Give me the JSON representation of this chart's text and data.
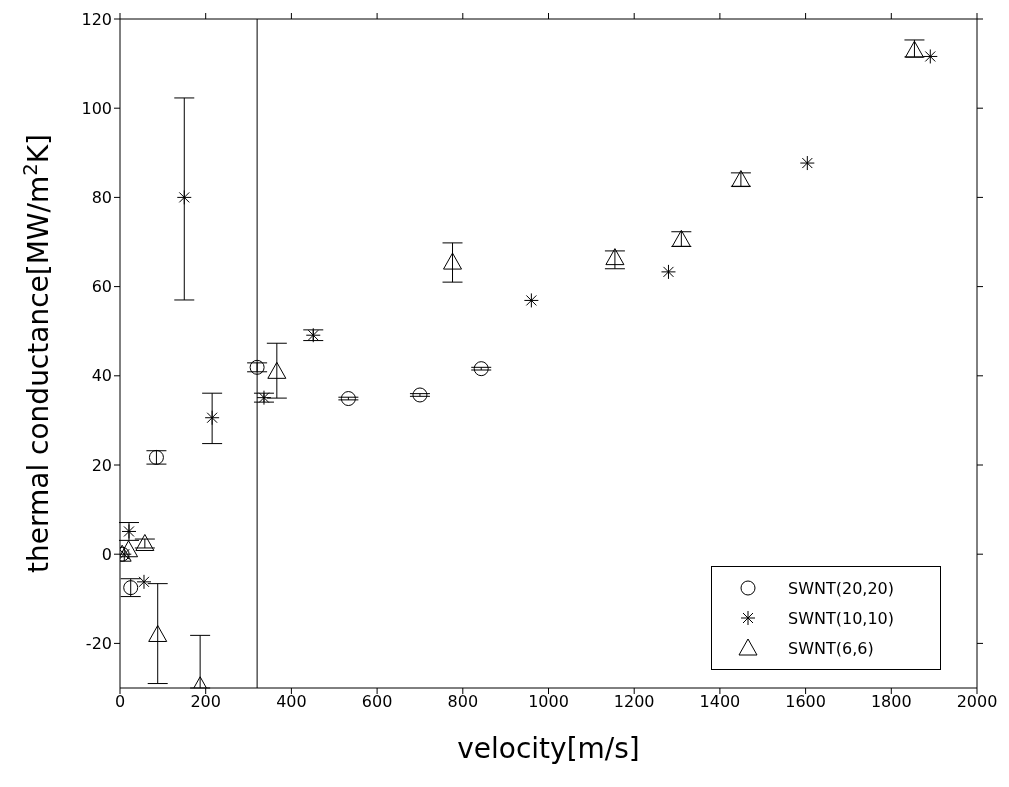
{
  "chart_data": {
    "type": "scatter",
    "xlabel": "velocity[m/s]",
    "ylabel": "thermal conductance[MW/m$^{2}$K]",
    "xlim": [
      0,
      2000
    ],
    "xticks": [
      0,
      200,
      400,
      600,
      800,
      1000,
      1200,
      1400,
      1600,
      1800,
      2000
    ],
    "ylim": [
      -30,
      120
    ],
    "yticks": [
      -20,
      0,
      20,
      40,
      60,
      80,
      100,
      120
    ],
    "grid": false,
    "legend": "bottom right",
    "ref_lines": [
      {
        "axis": "x",
        "value": 320,
        "color": "#000000"
      }
    ],
    "series": [
      {
        "name": "SWNT(20,20)",
        "color": "#000000",
        "marker": "circle",
        "x": [
          5,
          25,
          85,
          320,
          533,
          700,
          843
        ],
        "values": [
          0,
          -7.5,
          21.7,
          41.9,
          34.9,
          35.7,
          41.6
        ],
        "errors": [
          null,
          2,
          1.5,
          1,
          0.3,
          0.3,
          0.3
        ]
      },
      {
        "name": "SWNT(10,10)",
        "color": "#000000",
        "marker": "cross",
        "x": [
          10,
          21,
          56,
          150,
          215,
          336,
          451,
          960,
          1280,
          1604,
          1891
        ],
        "values": [
          0,
          5.1,
          -6.2,
          80,
          30.6,
          35.1,
          49.1,
          56.9,
          63.3,
          87.7,
          111.6
        ],
        "errors": [
          null,
          2,
          null,
          [
            57,
            102.3
          ],
          [
            24.8,
            36.1
          ],
          1,
          1.2,
          null,
          null,
          null,
          null
        ]
      },
      {
        "name": "SWNT(6,6)",
        "color": "#000000",
        "marker": "triangle",
        "x": [
          5,
          20,
          58,
          88,
          187,
          366,
          776,
          1155,
          1310,
          1449,
          1854
        ],
        "values": [
          0,
          1,
          2.4,
          -18,
          -29.5,
          41,
          65.5,
          66.5,
          70.6,
          84,
          113
        ],
        "errors": [
          null,
          null,
          1,
          [
            -29,
            -6.6
          ],
          [
            -30,
            -18.2
          ],
          [
            35,
            47.3
          ],
          [
            61,
            69.8
          ],
          [
            64,
            68
          ],
          [
            69,
            72.3
          ],
          [
            82.5,
            85.5
          ],
          [
            111.5,
            115.3
          ]
        ]
      }
    ]
  }
}
